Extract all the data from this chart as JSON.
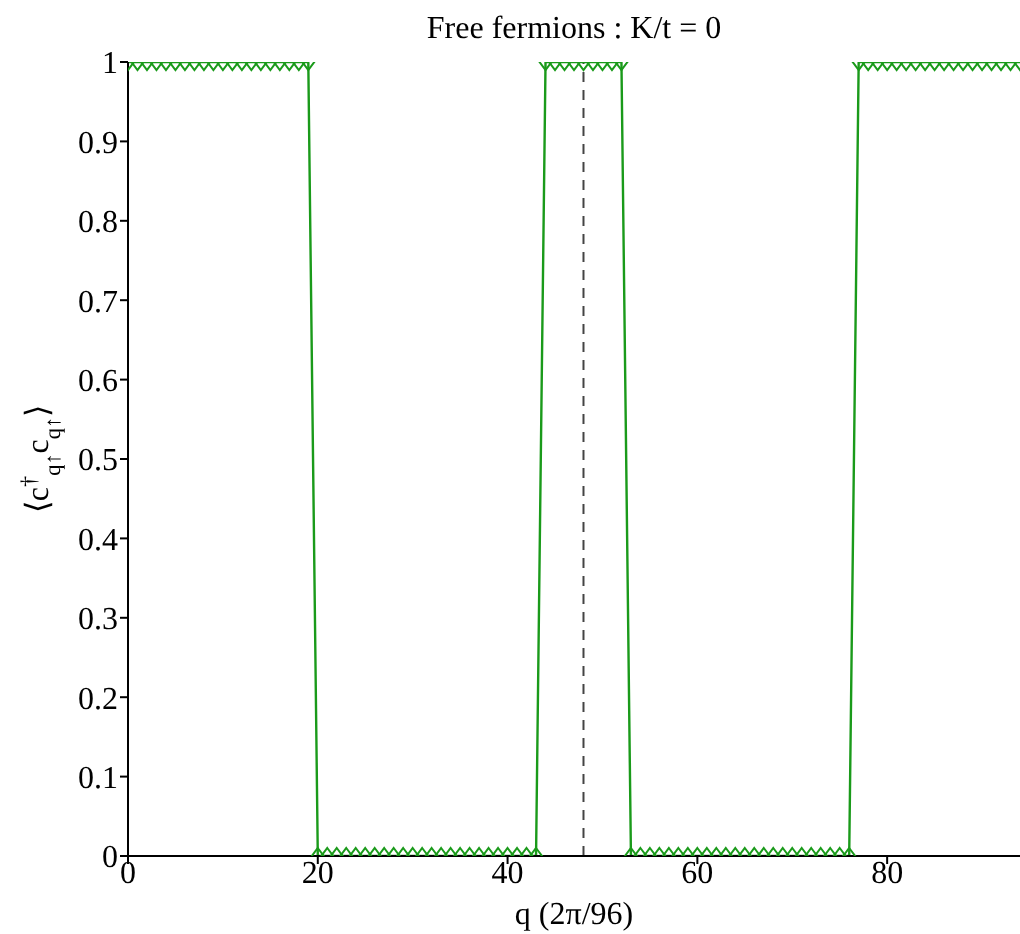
{
  "chart_data": {
    "type": "line",
    "title": "Free fermions : K/t = 0",
    "xlabel": "q (2π/96)",
    "ylabel": "⟨c$^{†}$$_{q↑}$c$_{q↑}$⟩",
    "x": [
      0,
      1,
      2,
      3,
      4,
      5,
      6,
      7,
      8,
      9,
      10,
      11,
      12,
      13,
      14,
      15,
      16,
      17,
      18,
      19,
      20,
      21,
      22,
      23,
      24,
      25,
      26,
      27,
      28,
      29,
      30,
      31,
      32,
      33,
      34,
      35,
      36,
      37,
      38,
      39,
      40,
      41,
      42,
      43,
      44,
      45,
      46,
      47,
      48,
      49,
      50,
      51,
      52,
      53,
      54,
      55,
      56,
      57,
      58,
      59,
      60,
      61,
      62,
      63,
      64,
      65,
      66,
      67,
      68,
      69,
      70,
      71,
      72,
      73,
      74,
      75,
      76,
      77,
      78,
      79,
      80,
      81,
      82,
      83,
      84,
      85,
      86,
      87,
      88,
      89,
      90,
      91,
      92,
      93,
      94
    ],
    "series": [
      {
        "color": "#1a9a1a",
        "values": [
          1,
          1,
          1,
          1,
          1,
          1,
          1,
          1,
          1,
          1,
          1,
          1,
          1,
          1,
          1,
          1,
          1,
          1,
          1,
          1,
          0,
          0,
          0,
          0,
          0,
          0,
          0,
          0,
          0,
          0,
          0,
          0,
          0,
          0,
          0,
          0,
          0,
          0,
          0,
          0,
          0,
          0,
          0,
          0,
          1,
          1,
          1,
          1,
          1,
          1,
          1,
          1,
          1,
          0,
          0,
          0,
          0,
          0,
          0,
          0,
          0,
          0,
          0,
          0,
          0,
          0,
          0,
          0,
          0,
          0,
          0,
          0,
          0,
          0,
          0,
          0,
          0,
          1,
          1,
          1,
          1,
          1,
          1,
          1,
          1,
          1,
          1,
          1,
          1,
          1,
          1,
          1,
          1,
          1,
          1
        ]
      }
    ],
    "xlim": [
      0,
      94
    ],
    "xticks": [
      0,
      20,
      40,
      60,
      80
    ],
    "ylim": [
      0,
      1
    ],
    "yticks": [
      0,
      0.1,
      0.2,
      0.3,
      0.4,
      0.5,
      0.6,
      0.7,
      0.8,
      0.9,
      1
    ],
    "ref_lines": [
      {
        "axis": "x",
        "value": 48,
        "color": "#444444",
        "line_style": "dashed"
      }
    ],
    "marker": "diamond",
    "line_style": "solid",
    "grid": false,
    "legend": false
  }
}
